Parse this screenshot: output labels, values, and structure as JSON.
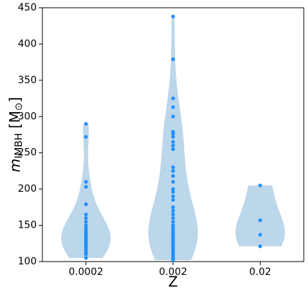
{
  "chart_data": {
    "type": "violin",
    "xlabel": "Z",
    "ylabel_parts": [
      "m",
      "IMBH",
      " [M",
      "⊙",
      "]"
    ],
    "categories": [
      "0.0002",
      "0.002",
      "0.02"
    ],
    "point_color": "#1e90ff",
    "violin_color": "#bcd6ea",
    "ylim": [
      100,
      450
    ],
    "yticks": [
      100,
      150,
      200,
      250,
      300,
      350,
      400,
      450
    ],
    "series": [
      {
        "values": [
          290,
          272,
          210,
          203,
          179,
          165,
          160,
          155,
          150,
          146,
          143,
          140,
          138,
          135,
          132,
          130,
          128,
          125,
          122,
          120,
          118,
          115,
          112,
          110,
          105
        ]
      },
      {
        "values": [
          438,
          379,
          325,
          313,
          300,
          279,
          276,
          272,
          265,
          260,
          255,
          230,
          225,
          218,
          210,
          200,
          196,
          190,
          185,
          175,
          170,
          165,
          160,
          155,
          150,
          147,
          145,
          142,
          140,
          137,
          135,
          132,
          130,
          128,
          125,
          122,
          120,
          118,
          115,
          112,
          110,
          107,
          104,
          102
        ]
      },
      {
        "values": [
          205,
          157,
          137,
          121
        ]
      }
    ]
  }
}
